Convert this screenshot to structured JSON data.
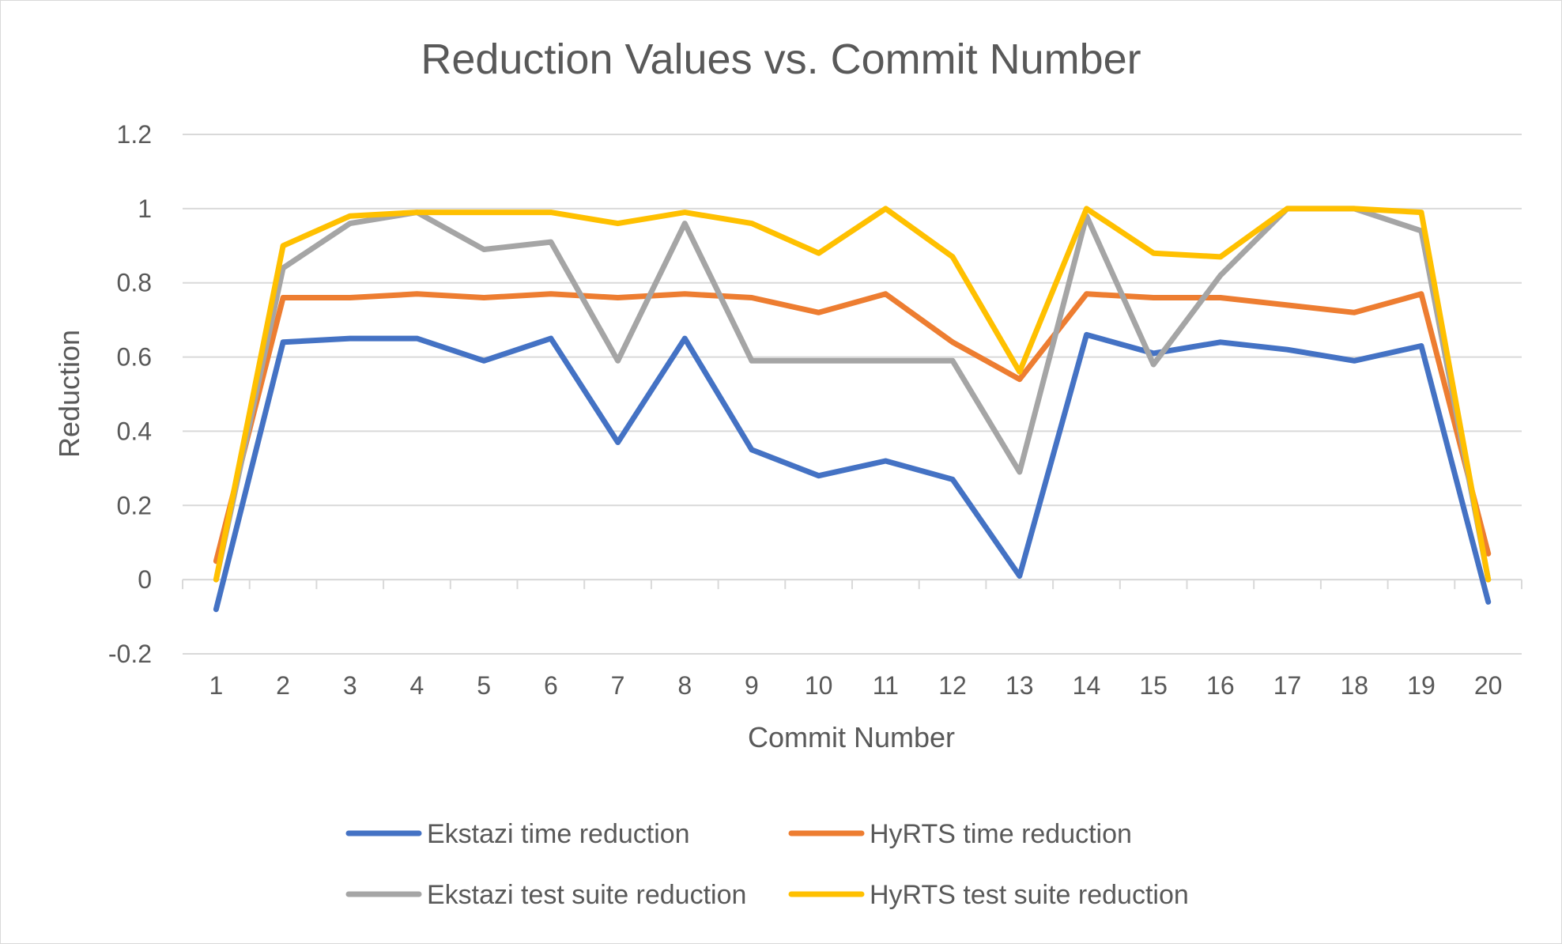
{
  "chart_data": {
    "type": "line",
    "title": "Reduction Values vs. Commit Number",
    "xlabel": "Commit Number",
    "ylabel": "Reduction",
    "categories": [
      "1",
      "2",
      "3",
      "4",
      "5",
      "6",
      "7",
      "8",
      "9",
      "10",
      "11",
      "12",
      "13",
      "14",
      "15",
      "16",
      "17",
      "18",
      "19",
      "20"
    ],
    "ylim": [
      -0.2,
      1.2
    ],
    "yticks": [
      "1.2",
      "1",
      "0.8",
      "0.6",
      "0.4",
      "0.2",
      "0",
      "-0.2"
    ],
    "ytick_values": [
      1.2,
      1,
      0.8,
      0.6,
      0.4,
      0.2,
      0,
      -0.2
    ],
    "grid": true,
    "legend_position": "bottom",
    "series": [
      {
        "name": "Ekstazi time reduction",
        "color": "#4472C4",
        "values": [
          -0.08,
          0.64,
          0.65,
          0.65,
          0.59,
          0.65,
          0.37,
          0.65,
          0.35,
          0.28,
          0.32,
          0.27,
          0.01,
          0.66,
          0.61,
          0.64,
          0.62,
          0.59,
          0.63,
          -0.06
        ]
      },
      {
        "name": "HyRTS time reduction",
        "color": "#ED7D31",
        "values": [
          0.05,
          0.76,
          0.76,
          0.77,
          0.76,
          0.77,
          0.76,
          0.77,
          0.76,
          0.72,
          0.77,
          0.64,
          0.54,
          0.77,
          0.76,
          0.76,
          0.74,
          0.72,
          0.77,
          0.07
        ]
      },
      {
        "name": "Ekstazi test suite reduction",
        "color": "#A5A5A5",
        "values": [
          0.0,
          0.84,
          0.96,
          0.99,
          0.89,
          0.91,
          0.59,
          0.96,
          0.59,
          0.59,
          0.59,
          0.59,
          0.29,
          0.98,
          0.58,
          0.82,
          1.0,
          1.0,
          0.94,
          0.0
        ]
      },
      {
        "name": "HyRTS test suite reduction",
        "color": "#FFC000",
        "values": [
          0.0,
          0.9,
          0.98,
          0.99,
          0.99,
          0.99,
          0.96,
          0.99,
          0.96,
          0.88,
          1.0,
          0.87,
          0.56,
          1.0,
          0.88,
          0.87,
          1.0,
          1.0,
          0.99,
          0.0
        ]
      }
    ]
  },
  "colors": {
    "gridline": "#d9d9d9",
    "text": "#595959",
    "frame": "#d9d9d9"
  }
}
